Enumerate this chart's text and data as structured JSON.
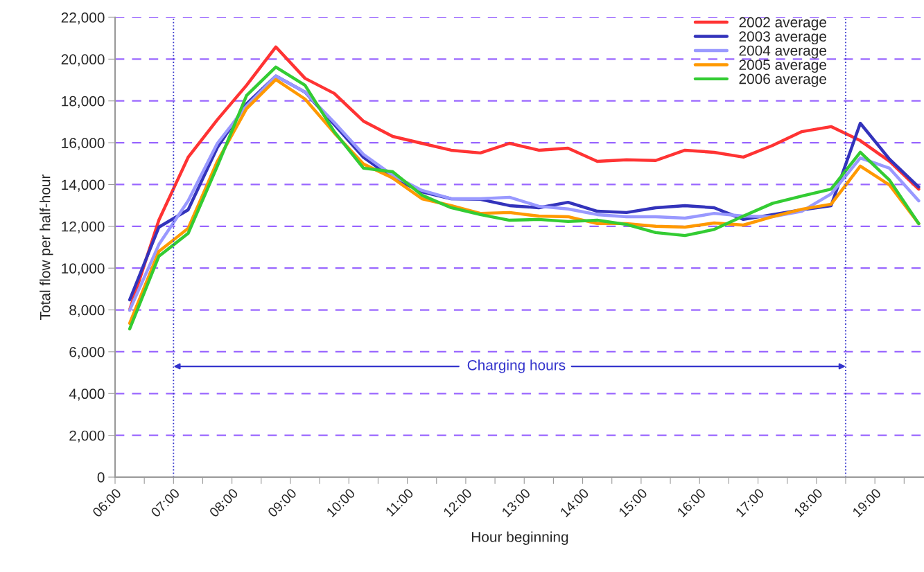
{
  "chart_data": {
    "type": "line",
    "xlabel": "Hour beginning",
    "ylabel": "Total flow per half-hour",
    "x": [
      6.25,
      6.75,
      7.25,
      7.75,
      8.25,
      8.75,
      9.25,
      9.75,
      10.25,
      10.75,
      11.25,
      11.75,
      12.25,
      12.75,
      13.25,
      13.75,
      14.25,
      14.75,
      15.25,
      15.75,
      16.25,
      16.75,
      17.25,
      17.75,
      18.25,
      18.75,
      19.25,
      19.75
    ],
    "series": [
      {
        "name": "2002 average",
        "color": "#ff3333",
        "values": [
          8000,
          12300,
          15300,
          17100,
          18750,
          20580,
          19080,
          18360,
          17030,
          16300,
          15970,
          15640,
          15510,
          15970,
          15640,
          15740,
          15110,
          15180,
          15150,
          15640,
          15540,
          15310,
          15870,
          16530,
          16770,
          16100,
          15110,
          13780
        ]
      },
      {
        "name": "2003 average",
        "color": "#3333bb",
        "values": [
          8480,
          11960,
          12790,
          15770,
          17860,
          19190,
          18420,
          16870,
          15300,
          14310,
          13650,
          13320,
          13290,
          12990,
          12890,
          13150,
          12720,
          12660,
          12890,
          12990,
          12890,
          12330,
          12560,
          12790,
          12990,
          16930,
          15210,
          13880
        ]
      },
      {
        "name": "2004 average",
        "color": "#9999ff",
        "values": [
          7990,
          11130,
          13220,
          15970,
          17760,
          19190,
          18420,
          16970,
          15440,
          14440,
          13720,
          13320,
          13320,
          13390,
          12960,
          12830,
          12560,
          12460,
          12460,
          12390,
          12620,
          12490,
          12460,
          12720,
          13550,
          15270,
          14780,
          13220
        ]
      },
      {
        "name": "2005 average",
        "color": "#ff9900",
        "values": [
          7360,
          10800,
          11900,
          15110,
          17630,
          19020,
          18090,
          16470,
          14980,
          14310,
          13320,
          12990,
          12620,
          12660,
          12490,
          12460,
          12130,
          12130,
          12000,
          11960,
          12160,
          12060,
          12460,
          12820,
          13060,
          14880,
          13980,
          12130
        ]
      },
      {
        "name": "2006 average",
        "color": "#33cc33",
        "values": [
          7090,
          10570,
          11660,
          14880,
          18260,
          19620,
          18750,
          16530,
          14780,
          14610,
          13490,
          12890,
          12560,
          12290,
          12330,
          12230,
          12290,
          12090,
          11700,
          11560,
          11850,
          12490,
          13100,
          13450,
          13780,
          15540,
          14210,
          12130
        ]
      }
    ],
    "xlim": [
      6,
      19.85
    ],
    "xticks": [
      {
        "value": 6,
        "label": "06:00"
      },
      {
        "value": 6.5,
        "label": null
      },
      {
        "value": 7,
        "label": "07:00"
      },
      {
        "value": 7.5,
        "label": null
      },
      {
        "value": 8,
        "label": "08:00"
      },
      {
        "value": 8.5,
        "label": null
      },
      {
        "value": 9,
        "label": "09:00"
      },
      {
        "value": 9.5,
        "label": null
      },
      {
        "value": 10,
        "label": "10:00"
      },
      {
        "value": 10.5,
        "label": null
      },
      {
        "value": 11,
        "label": "11:00"
      },
      {
        "value": 11.5,
        "label": null
      },
      {
        "value": 12,
        "label": "12:00"
      },
      {
        "value": 12.5,
        "label": null
      },
      {
        "value": 13,
        "label": "13:00"
      },
      {
        "value": 13.5,
        "label": null
      },
      {
        "value": 14,
        "label": "14:00"
      },
      {
        "value": 14.5,
        "label": null
      },
      {
        "value": 15,
        "label": "15:00"
      },
      {
        "value": 15.5,
        "label": null
      },
      {
        "value": 16,
        "label": "16:00"
      },
      {
        "value": 16.5,
        "label": null
      },
      {
        "value": 17,
        "label": "17:00"
      },
      {
        "value": 17.5,
        "label": null
      },
      {
        "value": 18,
        "label": "18:00"
      },
      {
        "value": 18.5,
        "label": null
      },
      {
        "value": 19,
        "label": "19:00"
      },
      {
        "value": 19.5,
        "label": null
      }
    ],
    "ylim": [
      0,
      22000
    ],
    "yticks": [
      {
        "value": 0,
        "label": "0"
      },
      {
        "value": 2000,
        "label": "2,000"
      },
      {
        "value": 4000,
        "label": "4,000"
      },
      {
        "value": 6000,
        "label": "6,000"
      },
      {
        "value": 8000,
        "label": "8,000"
      },
      {
        "value": 10000,
        "label": "10,000"
      },
      {
        "value": 12000,
        "label": "12,000"
      },
      {
        "value": 14000,
        "label": "14,000"
      },
      {
        "value": 16000,
        "label": "16,000"
      },
      {
        "value": 18000,
        "label": "18,000"
      },
      {
        "value": 20000,
        "label": "20,000"
      },
      {
        "value": 22000,
        "label": "22,000"
      }
    ],
    "grid": "y",
    "legend": "top right",
    "line_style": "solid",
    "marker": "none",
    "ref_lines": [
      {
        "axis": "x",
        "value": 7,
        "color": "#3333cc",
        "line_style": "dotted"
      },
      {
        "axis": "x",
        "value": 18.5,
        "color": "#3333cc",
        "line_style": "dotted"
      }
    ],
    "annotations": [
      {
        "text": "Charging hours",
        "x": 7,
        "y": 5300
      }
    ]
  }
}
